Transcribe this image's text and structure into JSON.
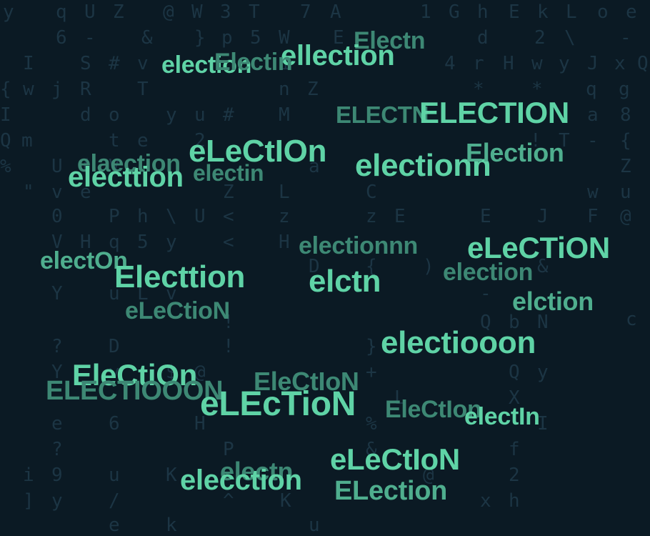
{
  "background_chars": [
    "y",
    "q",
    "U",
    "Z",
    "@",
    "W",
    "3",
    "T",
    "7",
    "A",
    "1",
    "G",
    "h",
    "E",
    "k",
    "L",
    "o",
    "e",
    "6",
    "-",
    "&",
    "}",
    "p",
    "5",
    "W",
    "E",
    "d",
    "2",
    "\\",
    "-",
    "I",
    "S",
    "#",
    "v",
    "i",
    "4",
    "r",
    "H",
    "w",
    "y",
    "J",
    "x",
    "Q",
    "{",
    "w",
    "j",
    "R",
    "T",
    "n",
    "Z",
    "*",
    "*",
    "q",
    "g",
    "I",
    "d",
    "o",
    "y",
    "u",
    "#",
    "M",
    "a",
    "8",
    "Q",
    "m",
    "t",
    "e",
    "2",
    "!",
    "T",
    "-",
    "{",
    "%",
    "U",
    "(",
    "V",
    "a",
    "Z",
    "\"",
    "v",
    "e",
    "Z",
    "L",
    "C",
    "w",
    "u",
    "0",
    "P",
    "h",
    "\\",
    "U",
    "<",
    "z",
    "z",
    "E",
    "E",
    "J",
    "F",
    "@",
    "V",
    "H",
    "q",
    "5",
    "y",
    "<",
    "H",
    ")",
    "D",
    "{",
    "&",
    "Y",
    "u",
    "L",
    "v",
    "-",
    "!",
    "?",
    "D",
    "!",
    "}",
    "Q",
    "N",
    "b",
    "Y",
    "v",
    "$",
    "@",
    "+",
    "Q",
    "y",
    "c",
    "e",
    "6",
    "H",
    "%",
    "X",
    "L",
    "I",
    "?",
    "P",
    "&",
    "f",
    "i",
    "9",
    "u",
    "/",
    "K",
    "@",
    "2",
    "]",
    "y",
    "^",
    "K",
    "x",
    "h",
    "e",
    "k",
    "u",
    "x"
  ],
  "words": [
    "Electn",
    "ellection",
    "election",
    "Electin",
    "ELECTN",
    "ELECTION",
    "elaection",
    "eLeCtIOn",
    "electin",
    "electionn",
    "Election",
    "electtion",
    "electionnn",
    "eLeCTiON",
    "electOn",
    "election",
    "Electtion",
    "elctn",
    "elction",
    "eLeCtioN",
    "electiooon",
    "EleCtiOn",
    "ELECTIOOON",
    "EleCtIoN",
    "eLEcTioN",
    "EleCtIon",
    "electIn",
    "electn",
    "eLeCtIoN",
    "elecction",
    "ELection"
  ],
  "colors": {
    "background": "#0b1a24",
    "bright": "#5fd3a6",
    "medium": "#4fae8e",
    "dim": "#3d8874",
    "grid": "#1c3544"
  }
}
